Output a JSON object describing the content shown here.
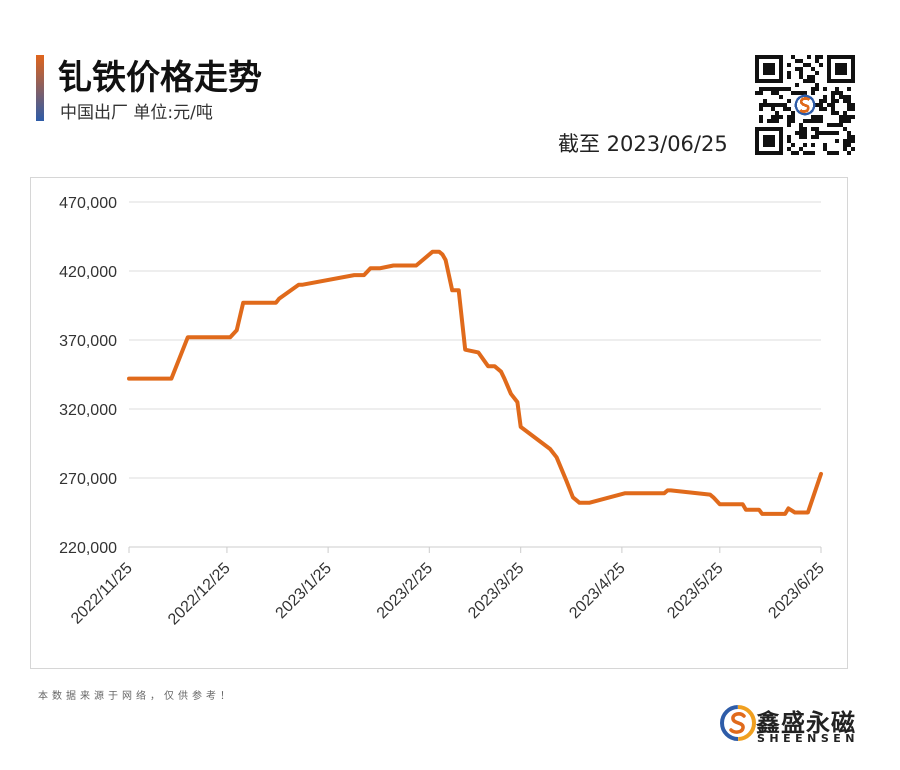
{
  "header": {
    "title": "钆铁价格走势",
    "subtitle": "中国出厂  单位:元/吨",
    "as_of": "截至 2023/06/25"
  },
  "footnote": "本数据来源于网络，仅供参考！",
  "brand": {
    "name_cn": "鑫盛永磁",
    "name_en": "SHEENSEN"
  },
  "colors": {
    "line": "#e06a1b",
    "grid": "#dcdcdc",
    "axis": "#cccccc",
    "text": "#333333"
  },
  "chart_data": {
    "type": "line",
    "title": "钆铁价格走势",
    "ylim": [
      220000,
      470000
    ],
    "y_ticks": [
      "220,000",
      "270,000",
      "320,000",
      "370,000",
      "420,000",
      "470,000"
    ],
    "y_tick_values": [
      220000,
      270000,
      320000,
      370000,
      420000,
      470000
    ],
    "x_ticks": [
      "2022/11/25",
      "2022/12/25",
      "2023/1/25",
      "2023/2/25",
      "2023/3/25",
      "2023/4/25",
      "2023/5/25",
      "2023/6/25"
    ],
    "grid": "horizontal",
    "series": [
      {
        "x": [
          "2022/11/25",
          "2022/12/5",
          "2022/12/8",
          "2022/12/13",
          "2022/12/15",
          "2022/12/18",
          "2022/12/26",
          "2022/12/28",
          "2022/12/30",
          "2023/1/1",
          "2023/1/2",
          "2023/1/3",
          "2023/1/6",
          "2023/1/9",
          "2023/1/10",
          "2023/1/16",
          "2023/1/17",
          "2023/2/2",
          "2023/2/3",
          "2023/2/5",
          "2023/2/7",
          "2023/2/8",
          "2023/2/10",
          "2023/2/14",
          "2023/2/17",
          "2023/2/20",
          "2023/2/21",
          "2023/2/26",
          "2023/2/28",
          "2023/3/1",
          "2023/3/2",
          "2023/3/4",
          "2023/3/6",
          "2023/3/8",
          "2023/3/12",
          "2023/3/15",
          "2023/3/17",
          "2023/3/19",
          "2023/3/20",
          "2023/3/22",
          "2023/3/24",
          "2023/3/25",
          "2023/4/3",
          "2023/4/5",
          "2023/4/8",
          "2023/4/10",
          "2023/4/12",
          "2023/4/15",
          "2023/4/26",
          "2023/4/28",
          "2023/5/5",
          "2023/5/7",
          "2023/5/8",
          "2023/5/9",
          "2023/5/10",
          "2023/5/22",
          "2023/5/23",
          "2023/5/25",
          "2023/5/26",
          "2023/5/28",
          "2023/5/30",
          "2023/5/31",
          "2023/6/1",
          "2023/6/2",
          "2023/6/6",
          "2023/6/7",
          "2023/6/14",
          "2023/6/15",
          "2023/6/17",
          "2023/6/20",
          "2023/6/21",
          "2023/6/25"
        ],
        "y": [
          342000,
          342000,
          342000,
          372000,
          372000,
          372000,
          372000,
          377000,
          397000,
          397000,
          397000,
          397000,
          397000,
          397000,
          400000,
          410000,
          410000,
          417000,
          417000,
          417000,
          422000,
          422000,
          422000,
          424000,
          424000,
          424000,
          424000,
          434000,
          434000,
          432000,
          428000,
          406000,
          406000,
          363000,
          361000,
          351000,
          351000,
          347000,
          342000,
          331000,
          325000,
          307000,
          291000,
          285000,
          268000,
          256000,
          252000,
          252000,
          259000,
          259000,
          259000,
          259000,
          259000,
          261000,
          261000,
          258000,
          256000,
          251000,
          251000,
          251000,
          251000,
          251000,
          251000,
          247000,
          247000,
          244000,
          244000,
          248000,
          245000,
          245000,
          245000,
          273000
        ]
      }
    ]
  }
}
